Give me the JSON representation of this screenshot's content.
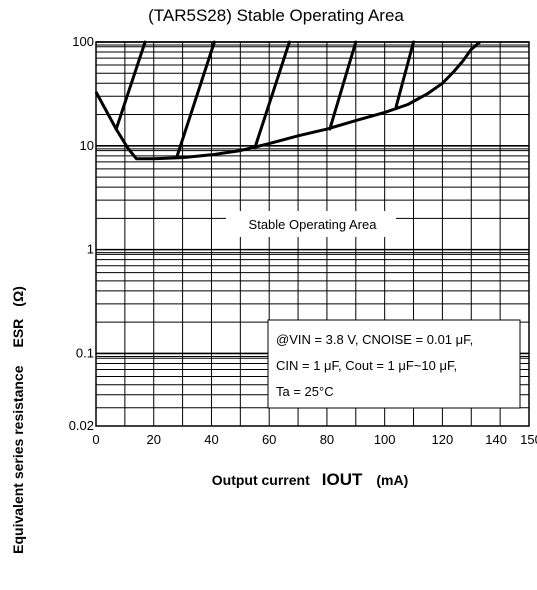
{
  "chart_data": {
    "type": "line",
    "title": "(TAR5S28) Stable Operating Area",
    "xlabel": {
      "prefix": "Output current",
      "symbol": "IOUT",
      "unit": "(mA)"
    },
    "ylabel": {
      "prefix": "Equivalent series resistance",
      "symbol": "ESR",
      "unit": "(Ω)"
    },
    "xlim": [
      0,
      150
    ],
    "ylim": [
      0.02,
      100
    ],
    "yscale": "log",
    "x_ticks": [
      0,
      20,
      40,
      60,
      80,
      100,
      120,
      140,
      150
    ],
    "y_ticks": [
      {
        "value": 0.02,
        "label": "0.02"
      },
      {
        "value": 0.1,
        "label": "0.1"
      },
      {
        "value": 1,
        "label": "1"
      },
      {
        "value": 10,
        "label": "10"
      },
      {
        "value": 100,
        "label": "100"
      }
    ],
    "grid": true,
    "series": [
      {
        "points": [
          [
            0,
            33
          ],
          [
            7,
            14.5
          ],
          [
            11,
            9.5
          ],
          [
            14,
            7.5
          ],
          [
            20,
            7.5
          ],
          [
            30,
            7.7
          ],
          [
            40,
            8.2
          ],
          [
            50,
            9
          ],
          [
            60,
            10.5
          ],
          [
            70,
            12.5
          ],
          [
            80,
            14.5
          ],
          [
            90,
            17.5
          ],
          [
            100,
            21
          ],
          [
            108,
            25
          ],
          [
            115,
            32
          ],
          [
            120,
            40
          ],
          [
            124,
            52
          ],
          [
            127,
            65
          ],
          [
            130,
            85
          ],
          [
            133,
            100
          ]
        ]
      }
    ],
    "boundary_lines": [
      [
        [
          7,
          14.5
        ],
        [
          17,
          100
        ]
      ],
      [
        [
          28,
          7.8
        ],
        [
          41,
          100
        ]
      ],
      [
        [
          55,
          9.5
        ],
        [
          67,
          100
        ]
      ],
      [
        [
          81,
          14.5
        ],
        [
          90,
          100
        ]
      ],
      [
        [
          104,
          24
        ],
        [
          110,
          100
        ]
      ]
    ],
    "annotations": [
      {
        "text": "Stable Operating Area",
        "x": 75,
        "y": 0.5
      },
      {
        "lines": [
          "@VIN = 3.8 V, CNOISE = 0.01 μF,",
          "CIN = 1 μF, Cout = 1 μF~10 μF,",
          "Ta = 25°C"
        ]
      }
    ]
  }
}
